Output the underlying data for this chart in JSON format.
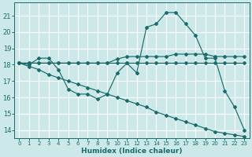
{
  "xlabel": "Humidex (Indice chaleur)",
  "bg_color": "#cce8e8",
  "grid_color": "#ffffff",
  "line_color": "#1a6b6b",
  "xlim": [
    -0.5,
    23.5
  ],
  "ylim": [
    13.5,
    21.8
  ],
  "xticks": [
    0,
    1,
    2,
    3,
    4,
    5,
    6,
    7,
    8,
    9,
    10,
    11,
    12,
    13,
    14,
    15,
    16,
    17,
    18,
    19,
    20,
    21,
    22,
    23
  ],
  "yticks": [
    14,
    15,
    16,
    17,
    18,
    19,
    20,
    21
  ],
  "series1_x": [
    0,
    1,
    2,
    3,
    4,
    5,
    6,
    7,
    8,
    9,
    10,
    11,
    12,
    13,
    14,
    15,
    16,
    17,
    18,
    19,
    20,
    21,
    22,
    23
  ],
  "series1_y": [
    18.1,
    18.0,
    18.4,
    18.4,
    17.7,
    16.5,
    16.2,
    16.2,
    15.9,
    16.2,
    17.5,
    18.1,
    17.5,
    20.3,
    20.5,
    21.2,
    21.2,
    20.5,
    19.8,
    18.4,
    18.4,
    16.4,
    15.4,
    14.0
  ],
  "series2_x": [
    0,
    1,
    2,
    3,
    4,
    5,
    6,
    7,
    8,
    9,
    10,
    11,
    12,
    13,
    14,
    15,
    16,
    17,
    18,
    19,
    20,
    21,
    22,
    23
  ],
  "series2_y": [
    18.1,
    18.1,
    18.1,
    18.1,
    18.1,
    18.1,
    18.1,
    18.1,
    18.1,
    18.1,
    18.1,
    18.1,
    18.1,
    18.1,
    18.1,
    18.1,
    18.1,
    18.1,
    18.1,
    18.1,
    18.1,
    18.1,
    18.1,
    18.1
  ],
  "series3_x": [
    0,
    1,
    2,
    3,
    4,
    5,
    6,
    7,
    8,
    9,
    10,
    11,
    12,
    13,
    14,
    15,
    16,
    17,
    18,
    19,
    20,
    21,
    22,
    23
  ],
  "series3_y": [
    18.1,
    18.1,
    18.1,
    18.1,
    18.1,
    18.1,
    18.1,
    18.1,
    18.1,
    18.1,
    18.35,
    18.5,
    18.5,
    18.5,
    18.5,
    18.5,
    18.65,
    18.65,
    18.65,
    18.65,
    18.5,
    18.5,
    18.5,
    18.5
  ],
  "series4_x": [
    0,
    1,
    2,
    3,
    4,
    5,
    6,
    7,
    8,
    9,
    10,
    11,
    12,
    13,
    14,
    15,
    16,
    17,
    18,
    19,
    20,
    21,
    22,
    23
  ],
  "series4_y": [
    18.1,
    17.9,
    17.7,
    17.4,
    17.2,
    17.0,
    16.8,
    16.6,
    16.4,
    16.2,
    16.0,
    15.8,
    15.6,
    15.4,
    15.1,
    14.9,
    14.7,
    14.5,
    14.3,
    14.1,
    13.9,
    13.8,
    13.7,
    13.6
  ]
}
